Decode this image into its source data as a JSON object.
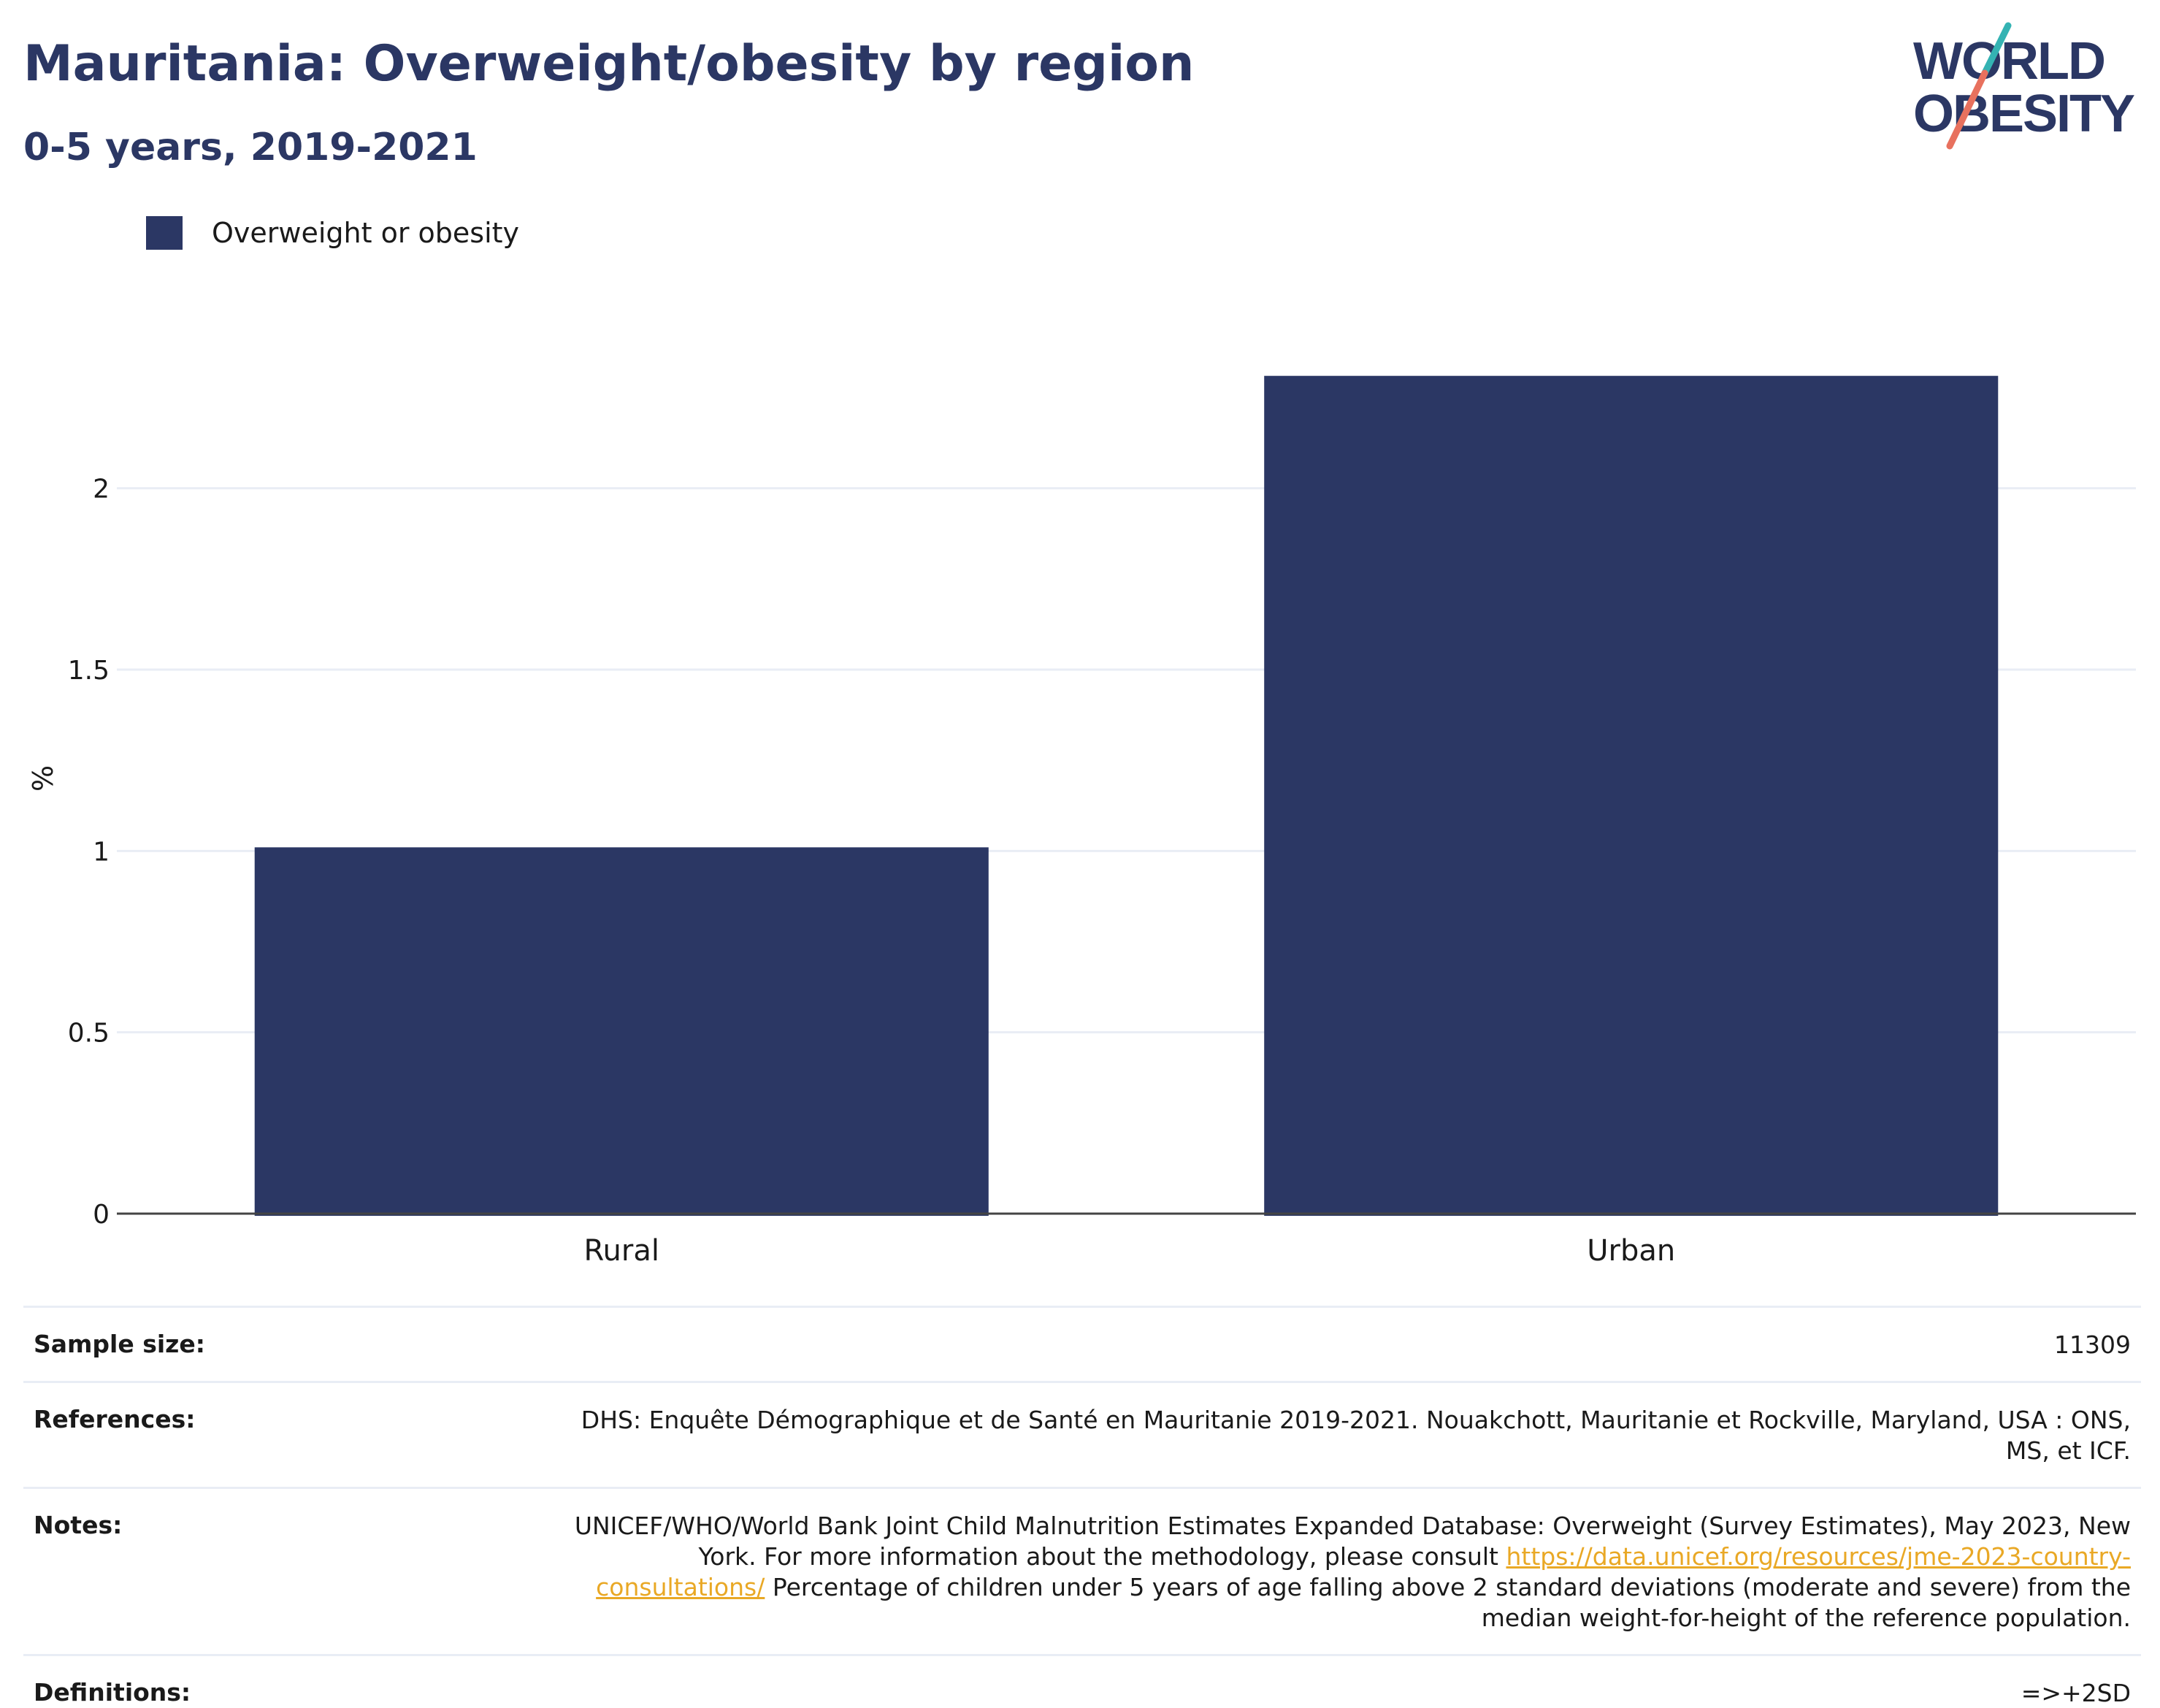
{
  "title": "Mauritania: Overweight/obesity by region",
  "subtitle": "0-5 years, 2019-2021",
  "logo": {
    "line1": "WORLD",
    "line2": "OBESITY"
  },
  "legend": {
    "label": "Overweight or obesity",
    "color": "#2b3764"
  },
  "chart_data": {
    "type": "bar",
    "title": "Mauritania: Overweight/obesity by region",
    "subtitle": "0-5 years, 2019-2021",
    "categories": [
      "Rural",
      "Urban"
    ],
    "series": [
      {
        "name": "Overweight or obesity",
        "values": [
          1.01,
          2.31
        ],
        "color": "#2b3764"
      }
    ],
    "xlabel": "",
    "ylabel": "%",
    "ylim": [
      0,
      2.4
    ],
    "yticks": [
      0,
      0.5,
      1,
      1.5,
      2
    ],
    "ytick_labels": [
      "0",
      "0.5",
      "1",
      "1.5",
      "2"
    ],
    "grid": true,
    "legend_position": "top-left"
  },
  "info": {
    "sample_size_label": "Sample size:",
    "sample_size_value": "11309",
    "references_label": "References:",
    "references_value": "DHS: Enquête Démographique et de Santé en Mauritanie 2019-2021. Nouakchott, Mauritanie et Rockville, Maryland, USA : ONS, MS, et ICF.",
    "notes_label": "Notes:",
    "notes_prefix": "UNICEF/WHO/World Bank Joint Child Malnutrition Estimates Expanded Database: Overweight (Survey Estimates), May 2023, New York. For more information about the methodology, please consult",
    "notes_link": "https://data.unicef.org/resources/jme-2023-country-consultations/",
    "notes_suffix": "Percentage of children under 5 years of age falling above 2 standard deviations (moderate and severe) from the median weight-for-height of the reference population.",
    "definitions_label": "Definitions:",
    "definitions_value": "=>+2SD"
  }
}
